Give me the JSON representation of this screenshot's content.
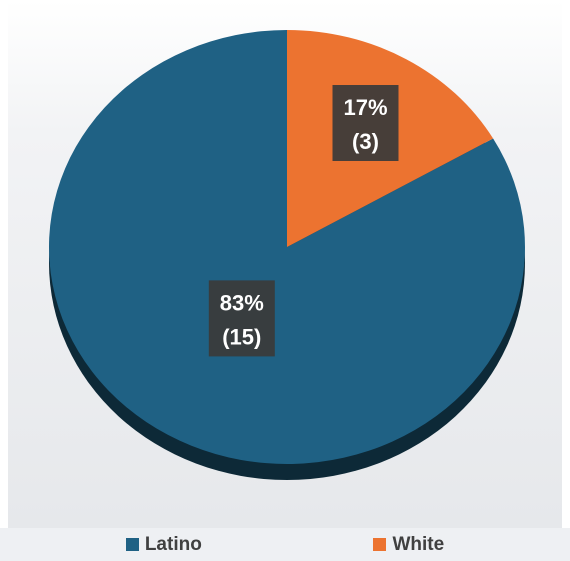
{
  "chart_data": {
    "type": "pie",
    "categories": [
      "Latino",
      "White"
    ],
    "values": [
      15,
      3
    ],
    "percentages": [
      "83%",
      "17%"
    ],
    "labels": [
      "83%\n(15)",
      "17%\n(3)"
    ],
    "colors": [
      "#1f6184",
      "#ec7330"
    ],
    "start_angle_deg": 0,
    "legend_position": "bottom"
  },
  "legend": {
    "items": [
      {
        "label": "Latino",
        "color": "#1f6184"
      },
      {
        "label": "White",
        "color": "#ec7330"
      }
    ]
  }
}
